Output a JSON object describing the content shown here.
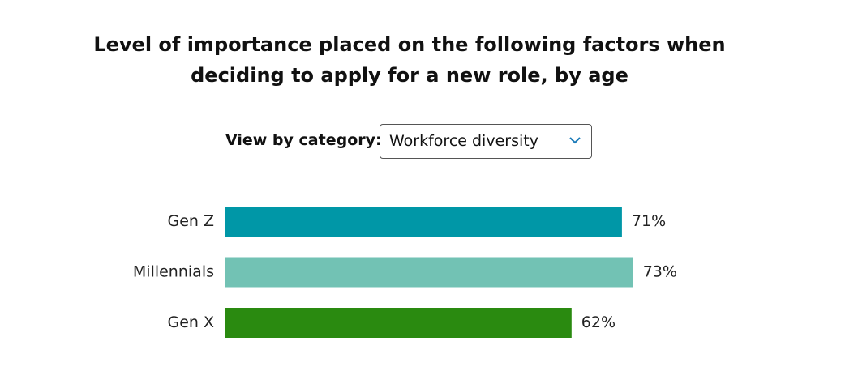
{
  "controls": {
    "label": "View by category:",
    "selected": "Workforce diversity"
  },
  "chart_data": {
    "type": "bar",
    "orientation": "horizontal",
    "title": "Level of importance placed on the following factors when deciding to apply for a new role, by age",
    "categories": [
      "Gen Z",
      "Millennials",
      "Gen X"
    ],
    "values": [
      71,
      73,
      62
    ],
    "value_labels": [
      "71%",
      "73%",
      "62%"
    ],
    "colors": [
      "#0097a7",
      "#72c2b4",
      "#2a8a10"
    ],
    "xlim": [
      0,
      100
    ]
  }
}
